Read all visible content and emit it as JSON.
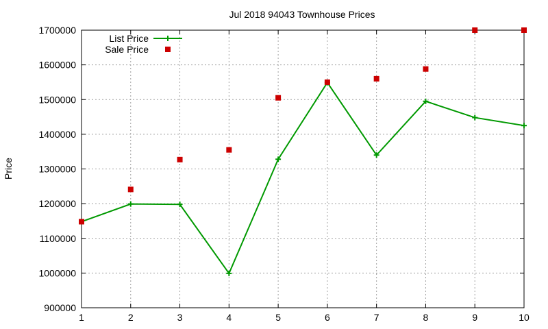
{
  "chart_data": {
    "type": "line",
    "title": "Jul 2018 94043 Townhouse Prices",
    "xlabel": "",
    "ylabel": "Price",
    "x": [
      1,
      2,
      3,
      4,
      5,
      6,
      7,
      8,
      9,
      10
    ],
    "xlim": [
      1,
      10
    ],
    "ylim": [
      900000,
      1700000
    ],
    "x_ticks": [
      "1",
      "2",
      "3",
      "4",
      "5",
      "6",
      "7",
      "8",
      "9",
      "10"
    ],
    "y_ticks": [
      "900000",
      "1000000",
      "1100000",
      "1200000",
      "1300000",
      "1400000",
      "1500000",
      "1600000",
      "1700000"
    ],
    "y_tick_values": [
      900000,
      1000000,
      1100000,
      1200000,
      1300000,
      1400000,
      1500000,
      1600000,
      1700000
    ],
    "grid": true,
    "legend_position": "top-left",
    "series": [
      {
        "name": "List Price",
        "style": "line+cross",
        "color": "#009900",
        "values": [
          1148000,
          1199000,
          1198000,
          999000,
          1328000,
          1549000,
          1340000,
          1495000,
          1448000,
          1425000
        ]
      },
      {
        "name": "Sale Price",
        "style": "square",
        "color": "#cc0000",
        "values": [
          1148000,
          1241000,
          1327000,
          1355000,
          1505000,
          1550000,
          1560000,
          1588000,
          1700000,
          1700000
        ]
      }
    ]
  }
}
